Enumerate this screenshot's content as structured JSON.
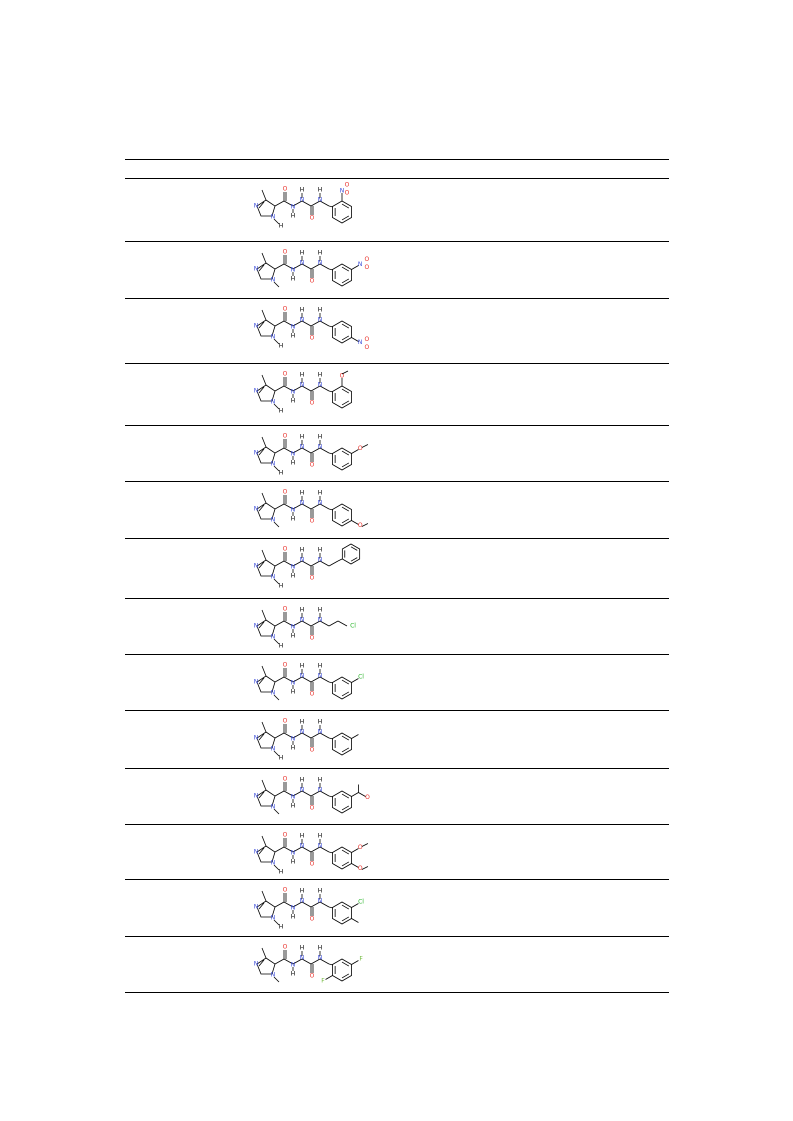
{
  "table": {
    "headers": [],
    "rows": [
      {
        "cmpd": "",
        "aryl": "2-nitrophenyl",
        "sub": [
          {
            "kind": "nitro",
            "pos": "o"
          }
        ],
        "n1": "H"
      },
      {
        "cmpd": "",
        "aryl": "3-nitrophenyl",
        "sub": [
          {
            "kind": "nitro",
            "pos": "m"
          }
        ],
        "n1": "CH3"
      },
      {
        "cmpd": "",
        "aryl": "4-nitrophenyl",
        "sub": [
          {
            "kind": "nitro",
            "pos": "p"
          }
        ],
        "n1": "H"
      },
      {
        "cmpd": "",
        "aryl": "2-methoxyphenyl",
        "sub": [
          {
            "kind": "methoxy",
            "pos": "o"
          }
        ],
        "n1": "H"
      },
      {
        "cmpd": "",
        "aryl": "3-methoxyphenyl",
        "sub": [
          {
            "kind": "methoxy",
            "pos": "m"
          }
        ],
        "n1": "H"
      },
      {
        "cmpd": "",
        "aryl": "4-methoxyphenyl",
        "sub": [
          {
            "kind": "methoxy",
            "pos": "p"
          }
        ],
        "n1": "CH3"
      },
      {
        "cmpd": "",
        "aryl": "benzyl",
        "sub": [
          {
            "kind": "benzyl",
            "pos": ""
          }
        ],
        "n1": "H"
      },
      {
        "cmpd": "",
        "aryl": "2-chloroethyl",
        "sub": [
          {
            "kind": "chloroethyl",
            "pos": ""
          }
        ],
        "n1": "H"
      },
      {
        "cmpd": "",
        "aryl": "3-chlorophenyl",
        "sub": [
          {
            "kind": "chloro",
            "pos": "m"
          }
        ],
        "n1": "CH3"
      },
      {
        "cmpd": "",
        "aryl": "3-methylphenyl",
        "sub": [
          {
            "kind": "methyl",
            "pos": "m"
          }
        ],
        "n1": "H"
      },
      {
        "cmpd": "",
        "aryl": "3-acetylphenyl",
        "sub": [
          {
            "kind": "acetyl",
            "pos": "m"
          }
        ],
        "n1": "CH3"
      },
      {
        "cmpd": "",
        "aryl": "3,4-dimethoxyphenyl",
        "sub": [
          {
            "kind": "methoxy",
            "pos": "m"
          },
          {
            "kind": "methoxy",
            "pos": "p"
          }
        ],
        "n1": "H"
      },
      {
        "cmpd": "",
        "aryl": "3-chloro-4-methylphenyl",
        "sub": [
          {
            "kind": "chloro",
            "pos": "m"
          },
          {
            "kind": "methyl",
            "pos": "p"
          }
        ],
        "n1": "H"
      },
      {
        "cmpd": "",
        "aryl": "2,5-difluorophenyl",
        "sub": [
          {
            "kind": "fluoro",
            "pos": "o"
          },
          {
            "kind": "fluoro",
            "pos": "m"
          }
        ],
        "n1": "CH3"
      }
    ]
  },
  "atoms": {
    "O": "O",
    "N": "N",
    "H": "H",
    "Cl": "Cl",
    "F": "F"
  },
  "colors": {
    "oxygen": "#e8302a",
    "nitrogen": "#3a4bd8",
    "chlorine": "#2bb52b",
    "fluorine": "#6fb83a",
    "bond": "#000000"
  }
}
